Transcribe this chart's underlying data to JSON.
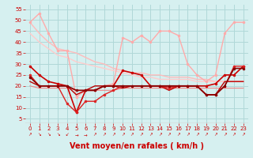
{
  "background_color": "#d6f0f0",
  "grid_color": "#b0d8d8",
  "xlabel": "Vent moyen/en rafales ( km/h )",
  "xlabel_color": "#cc0000",
  "tick_color": "#cc0000",
  "xlabel_fontsize": 7,
  "xlim": [
    -0.5,
    23.5
  ],
  "ylim": [
    3,
    57
  ],
  "yticks": [
    5,
    10,
    15,
    20,
    25,
    30,
    35,
    40,
    45,
    50,
    55
  ],
  "xticks": [
    0,
    1,
    2,
    3,
    4,
    5,
    6,
    7,
    8,
    9,
    10,
    11,
    12,
    13,
    14,
    15,
    16,
    17,
    18,
    19,
    20,
    21,
    22,
    23
  ],
  "lines": [
    {
      "x": [
        0,
        1,
        2,
        3,
        4,
        5,
        6,
        7,
        8,
        9,
        10,
        11,
        12,
        13,
        14,
        15,
        16,
        17,
        18,
        19,
        20,
        21,
        22,
        23
      ],
      "y": [
        49,
        53,
        44,
        36,
        36,
        15,
        18,
        18,
        20,
        21,
        42,
        40,
        43,
        40,
        45,
        45,
        43,
        30,
        25,
        22,
        25,
        44,
        49,
        49
      ],
      "color": "#ffaaaa",
      "lw": 1.0,
      "marker": "o",
      "ms": 2.0,
      "zorder": 3
    },
    {
      "x": [
        0,
        1,
        2,
        3,
        4,
        5,
        6,
        7,
        8,
        9,
        10,
        11,
        12,
        13,
        14,
        15,
        16,
        17,
        18,
        19,
        20,
        21,
        22,
        23
      ],
      "y": [
        49,
        44,
        40,
        37,
        36,
        35,
        33,
        31,
        30,
        28,
        27,
        26,
        26,
        25,
        25,
        24,
        24,
        24,
        23,
        23,
        22,
        22,
        22,
        22
      ],
      "color": "#ffbbbb",
      "lw": 1.0,
      "marker": null,
      "ms": 0,
      "zorder": 2
    },
    {
      "x": [
        0,
        1,
        2,
        3,
        4,
        5,
        6,
        7,
        8,
        9,
        10,
        11,
        12,
        13,
        14,
        15,
        16,
        17,
        18,
        19,
        20,
        21,
        22,
        23
      ],
      "y": [
        44,
        40,
        37,
        34,
        33,
        31,
        30,
        29,
        28,
        27,
        26,
        25,
        24,
        24,
        23,
        23,
        23,
        23,
        22,
        22,
        22,
        22,
        22,
        22
      ],
      "color": "#ffcccc",
      "lw": 1.0,
      "marker": null,
      "ms": 0,
      "zorder": 2
    },
    {
      "x": [
        0,
        1,
        2,
        3,
        4,
        5,
        6,
        7,
        8,
        9,
        10,
        11,
        12,
        13,
        14,
        15,
        16,
        17,
        18,
        19,
        20,
        21,
        22,
        23
      ],
      "y": [
        29,
        25,
        22,
        21,
        20,
        8,
        18,
        18,
        20,
        20,
        27,
        26,
        25,
        20,
        20,
        20,
        20,
        20,
        20,
        20,
        21,
        25,
        25,
        29
      ],
      "color": "#cc0000",
      "lw": 1.2,
      "marker": "o",
      "ms": 2.0,
      "zorder": 4
    },
    {
      "x": [
        0,
        1,
        2,
        3,
        4,
        5,
        6,
        7,
        8,
        9,
        10,
        11,
        12,
        13,
        14,
        15,
        16,
        17,
        18,
        19,
        20,
        21,
        22,
        23
      ],
      "y": [
        25,
        20,
        20,
        20,
        12,
        8,
        13,
        13,
        16,
        18,
        20,
        20,
        20,
        20,
        20,
        19,
        20,
        20,
        20,
        16,
        16,
        20,
        29,
        29
      ],
      "color": "#dd2222",
      "lw": 1.0,
      "marker": "o",
      "ms": 2.0,
      "zorder": 4
    },
    {
      "x": [
        0,
        1,
        2,
        3,
        4,
        5,
        6,
        7,
        8,
        9,
        10,
        11,
        12,
        13,
        14,
        15,
        16,
        17,
        18,
        19,
        20,
        21,
        22,
        23
      ],
      "y": [
        22,
        20,
        20,
        20,
        20,
        16,
        18,
        20,
        20,
        20,
        19,
        20,
        20,
        20,
        20,
        18,
        20,
        20,
        20,
        16,
        16,
        22,
        22,
        22
      ],
      "color": "#bb0000",
      "lw": 1.0,
      "marker": null,
      "ms": 0,
      "zorder": 3
    },
    {
      "x": [
        0,
        1,
        2,
        3,
        4,
        5,
        6,
        7,
        8,
        9,
        10,
        11,
        12,
        13,
        14,
        15,
        16,
        17,
        18,
        19,
        20,
        21,
        22,
        23
      ],
      "y": [
        24,
        20,
        20,
        20,
        20,
        18,
        18,
        18,
        20,
        20,
        20,
        20,
        20,
        20,
        20,
        20,
        20,
        20,
        20,
        16,
        16,
        20,
        28,
        28
      ],
      "color": "#880000",
      "lw": 1.2,
      "marker": "o",
      "ms": 2.0,
      "zorder": 4
    },
    {
      "x": [
        0,
        1,
        2,
        3,
        4,
        5,
        6,
        7,
        8,
        9,
        10,
        11,
        12,
        13,
        14,
        15,
        16,
        17,
        18,
        19,
        20,
        21,
        22,
        23
      ],
      "y": [
        20,
        19,
        19,
        19,
        19,
        18,
        18,
        18,
        18,
        18,
        19,
        19,
        19,
        19,
        19,
        19,
        19,
        19,
        19,
        19,
        19,
        19,
        19,
        19
      ],
      "color": "#ee8888",
      "lw": 0.8,
      "marker": null,
      "ms": 0,
      "zorder": 2
    }
  ],
  "arrow_symbols": [
    "↗",
    "↘",
    "↘",
    "↘",
    "↙",
    "→",
    "→",
    "↗",
    "↗",
    "↗",
    "↗",
    "↗",
    "↗",
    "↗",
    "↗",
    "↗",
    "↗",
    "↗",
    "↗",
    "↗",
    "↗",
    "↗",
    "↗",
    "↗"
  ],
  "arrow_color": "#cc0000"
}
